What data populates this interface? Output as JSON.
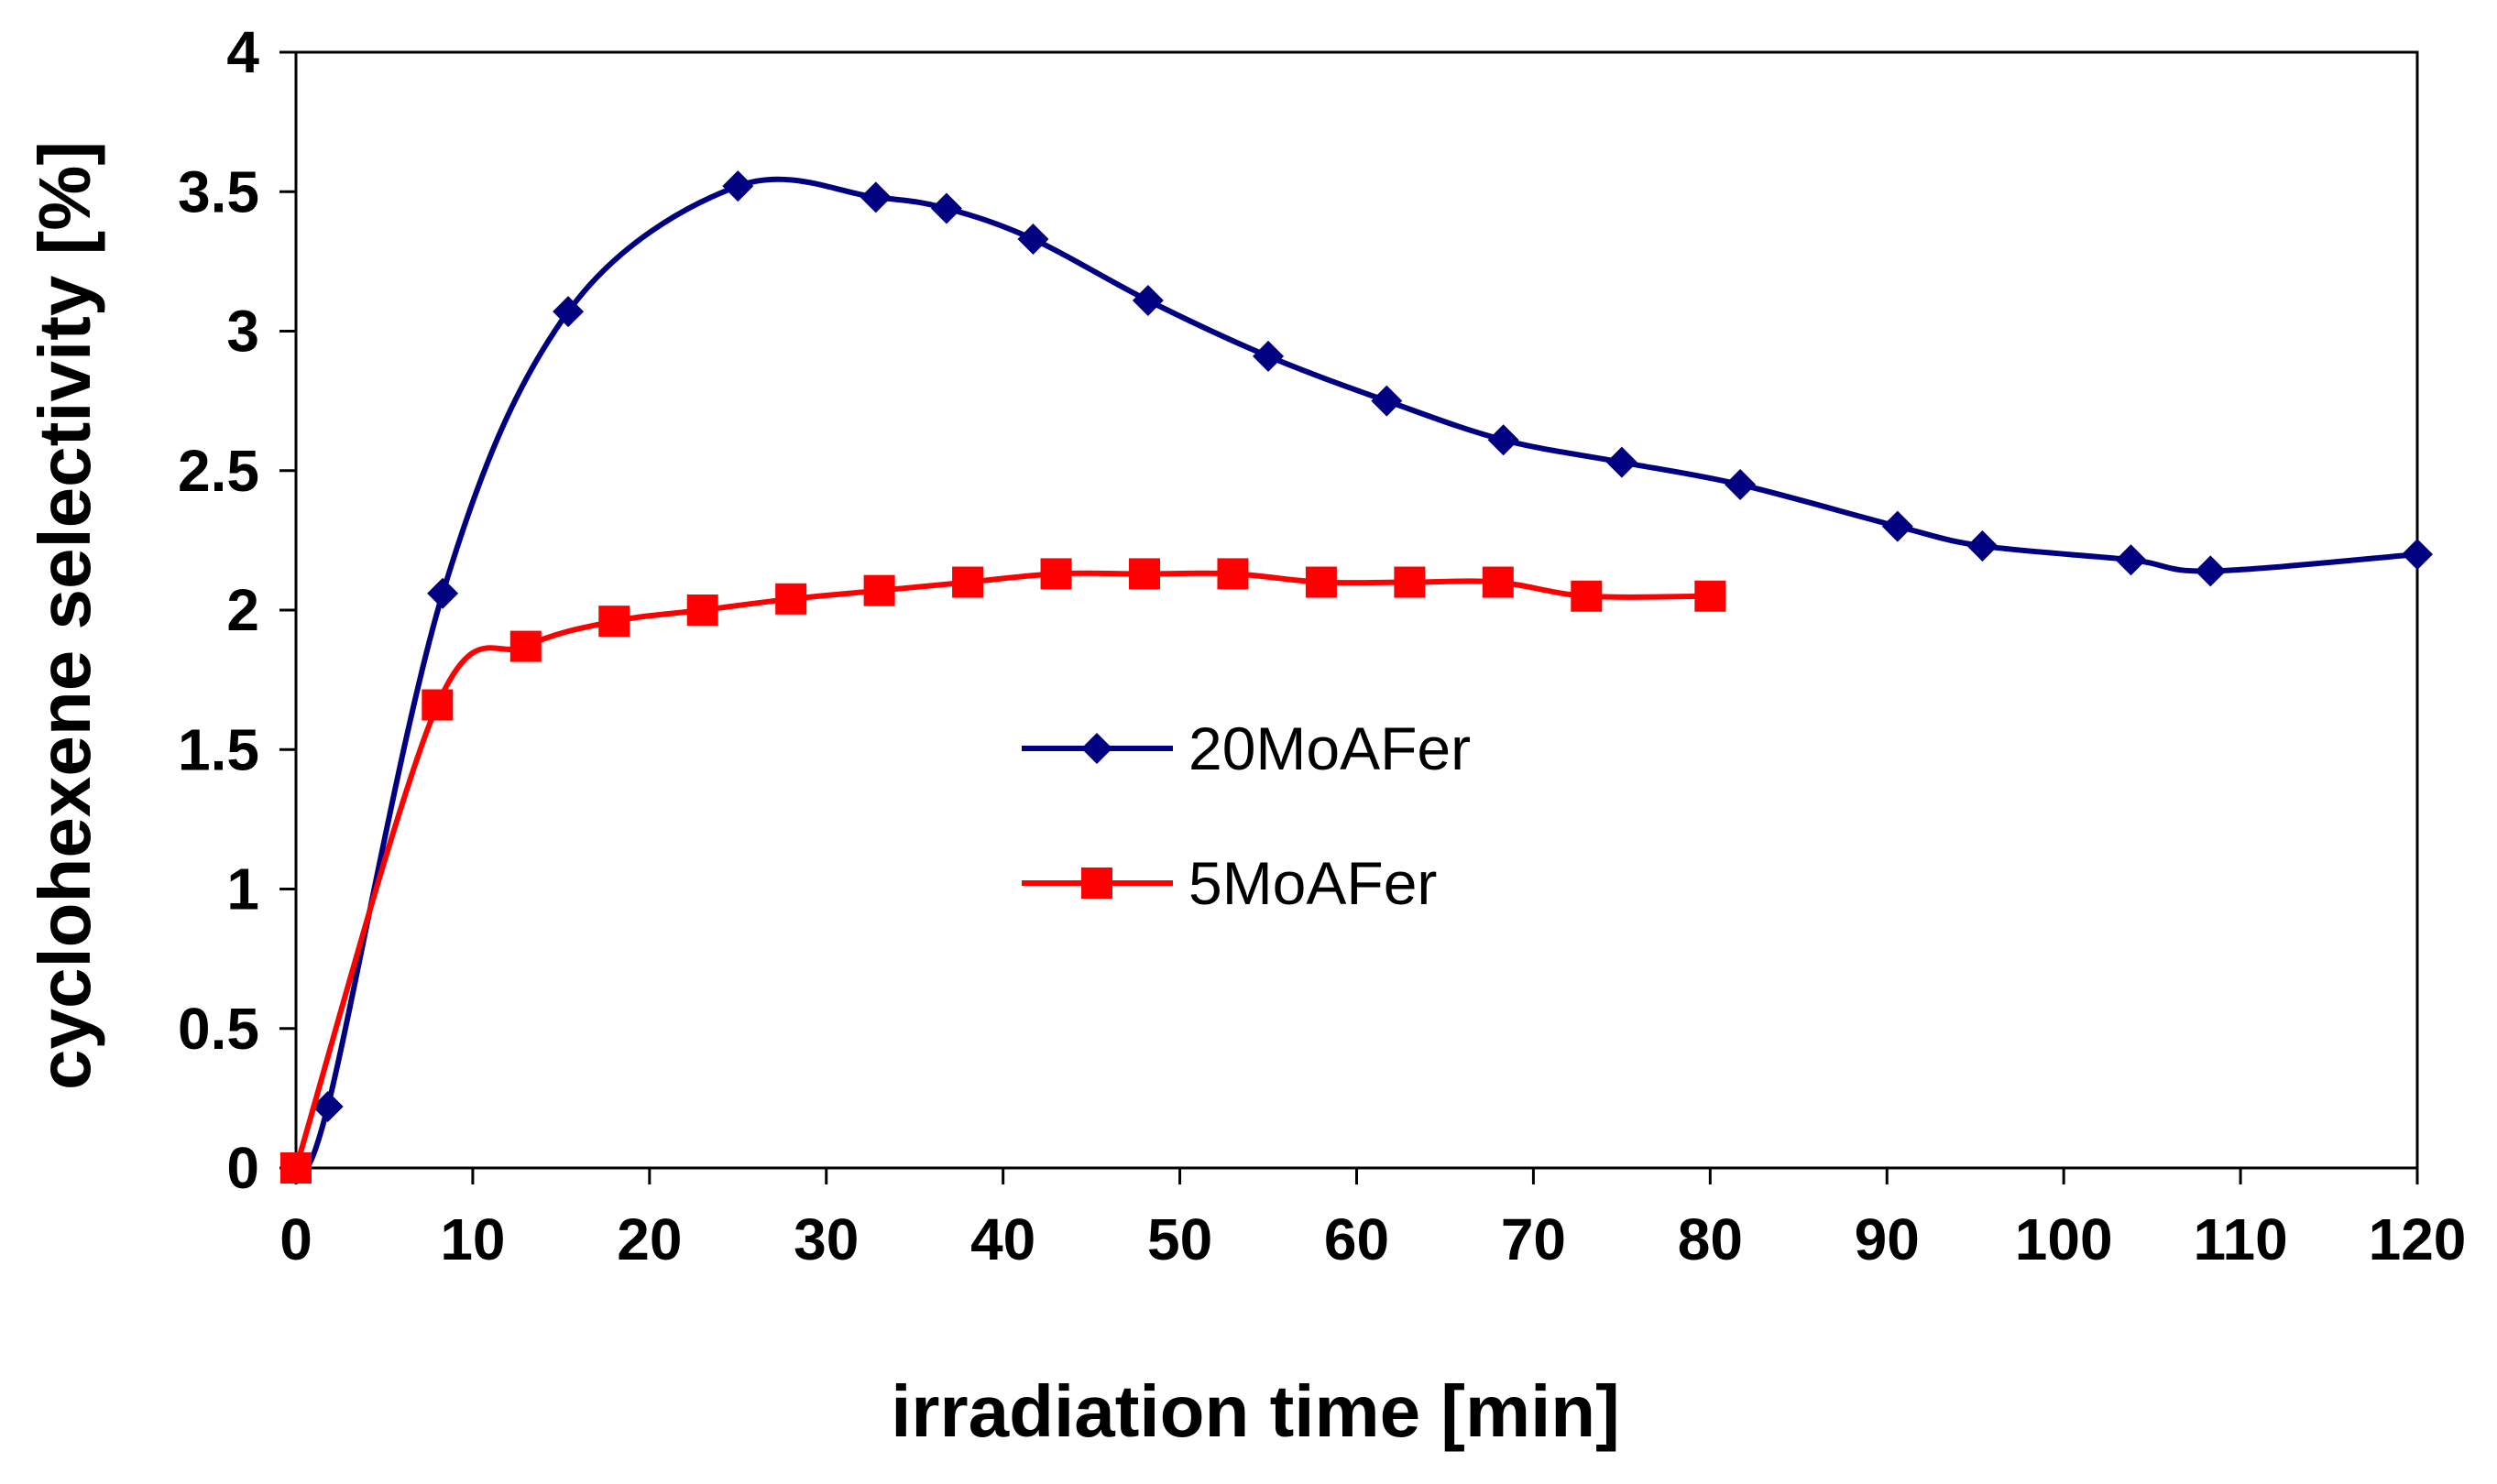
{
  "chart_data": {
    "type": "line",
    "title": "",
    "xlabel": "irradiation time [min]",
    "ylabel": "cyclohexene selectivity [%]",
    "xlim": [
      0,
      120
    ],
    "ylim": [
      0,
      4
    ],
    "x_ticks": [
      "0",
      "10",
      "20",
      "30",
      "40",
      "50",
      "60",
      "70",
      "80",
      "90",
      "100",
      "110",
      "120"
    ],
    "y_ticks": [
      "0",
      "0.5",
      "1",
      "1.5",
      "2",
      "2.5",
      "3",
      "3.5",
      "4"
    ],
    "grid": false,
    "legend_position": "center",
    "series": [
      {
        "name": "20MoAFer",
        "color": "#000080",
        "marker": "diamond",
        "points": [
          [
            0,
            0
          ],
          [
            1.8,
            0.22
          ],
          [
            8.3,
            2.06
          ],
          [
            15.4,
            3.07
          ],
          [
            25.0,
            3.52
          ],
          [
            32.8,
            3.48
          ],
          [
            36.8,
            3.44
          ],
          [
            41.7,
            3.33
          ],
          [
            48.2,
            3.11
          ],
          [
            55.0,
            2.91
          ],
          [
            61.7,
            2.75
          ],
          [
            68.3,
            2.61
          ],
          [
            75.0,
            2.53
          ],
          [
            81.7,
            2.45
          ],
          [
            90.6,
            2.3
          ],
          [
            95.4,
            2.23
          ],
          [
            103.8,
            2.18
          ],
          [
            108.3,
            2.14
          ],
          [
            120.0,
            2.2
          ]
        ]
      },
      {
        "name": "5MoAFer",
        "color": "#ff0000",
        "marker": "square",
        "points": [
          [
            0,
            0
          ],
          [
            8.0,
            1.66
          ],
          [
            13.0,
            1.87
          ],
          [
            18.0,
            1.96
          ],
          [
            23.0,
            2.0
          ],
          [
            28.0,
            2.04
          ],
          [
            33.0,
            2.07
          ],
          [
            38.0,
            2.1
          ],
          [
            43.0,
            2.13
          ],
          [
            48.0,
            2.13
          ],
          [
            53.0,
            2.13
          ],
          [
            58.0,
            2.1
          ],
          [
            63.0,
            2.1
          ],
          [
            68.0,
            2.1
          ],
          [
            73.0,
            2.05
          ],
          [
            80.0,
            2.05
          ]
        ]
      }
    ]
  }
}
